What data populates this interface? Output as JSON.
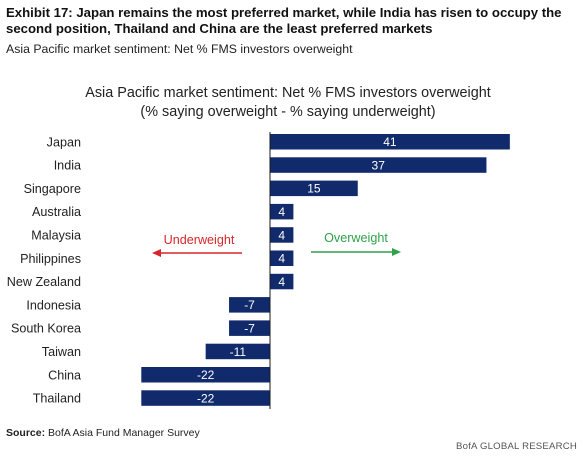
{
  "header": {
    "exhibit_title": "Exhibit 17: Japan remains the most preferred market, while India has risen to occupy the second position, Thailand and China are the least preferred markets",
    "exhibit_subtitle": "Asia Pacific market sentiment: Net % FMS investors overweight"
  },
  "footer": {
    "source_label": "Source:",
    "source_text": " BofA Asia Fund Manager Survey",
    "branding": "BofA GLOBAL RESEARCH"
  },
  "annotations": {
    "underweight": "Underweight",
    "overweight": "Overweight",
    "underweight_color": "#d7262b",
    "overweight_color": "#2ea24a"
  },
  "chart_data": {
    "type": "bar",
    "orientation": "horizontal",
    "title": "Asia Pacific market sentiment: Net % FMS investors overweight",
    "subtitle": "(% saying overweight - % saying underweight)",
    "categories": [
      "Japan",
      "India",
      "Singapore",
      "Australia",
      "Malaysia",
      "Philippines",
      "New Zealand",
      "Indonesia",
      "South Korea",
      "Taiwan",
      "China",
      "Thailand"
    ],
    "values": [
      41,
      37,
      15,
      4,
      4,
      4,
      4,
      -7,
      -7,
      -11,
      -22,
      -22
    ],
    "bar_color": "#102a6b",
    "xlim": [
      -22,
      41
    ]
  }
}
